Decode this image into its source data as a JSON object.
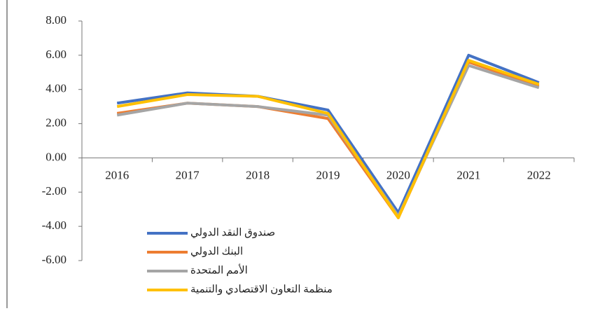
{
  "chart_data": {
    "type": "line",
    "categories": [
      "2016",
      "2017",
      "2018",
      "2019",
      "2020",
      "2021",
      "2022"
    ],
    "series": [
      {
        "name": "صندوق النقد الدولي",
        "color": "#4472c4",
        "values": [
          3.2,
          3.8,
          3.6,
          2.8,
          -3.2,
          6.0,
          4.4
        ]
      },
      {
        "name": "البنك الدولي",
        "color": "#ed7d31",
        "values": [
          2.6,
          3.2,
          3.0,
          2.3,
          -3.5,
          5.6,
          4.2
        ]
      },
      {
        "name": "الأمم المتحدة",
        "color": "#a5a5a5",
        "values": [
          2.5,
          3.2,
          3.0,
          2.5,
          -3.4,
          5.4,
          4.1
        ]
      },
      {
        "name": "منظمة التعاون الاقتصادي والتنمية",
        "color": "#ffc000",
        "values": [
          3.0,
          3.7,
          3.6,
          2.6,
          -3.5,
          5.7,
          4.3
        ]
      }
    ],
    "ylim": [
      -6,
      8
    ],
    "yticks": [
      {
        "value": 8,
        "label": "8.00"
      },
      {
        "value": 6,
        "label": "6.00"
      },
      {
        "value": 4,
        "label": "4.00"
      },
      {
        "value": 2,
        "label": "2.00"
      },
      {
        "value": 0,
        "label": "0.00"
      },
      {
        "value": -2,
        "label": "-2.00"
      },
      {
        "value": -4,
        "label": "-4.00"
      },
      {
        "value": -6,
        "label": "-6.00"
      }
    ],
    "legend": "lower-left"
  }
}
